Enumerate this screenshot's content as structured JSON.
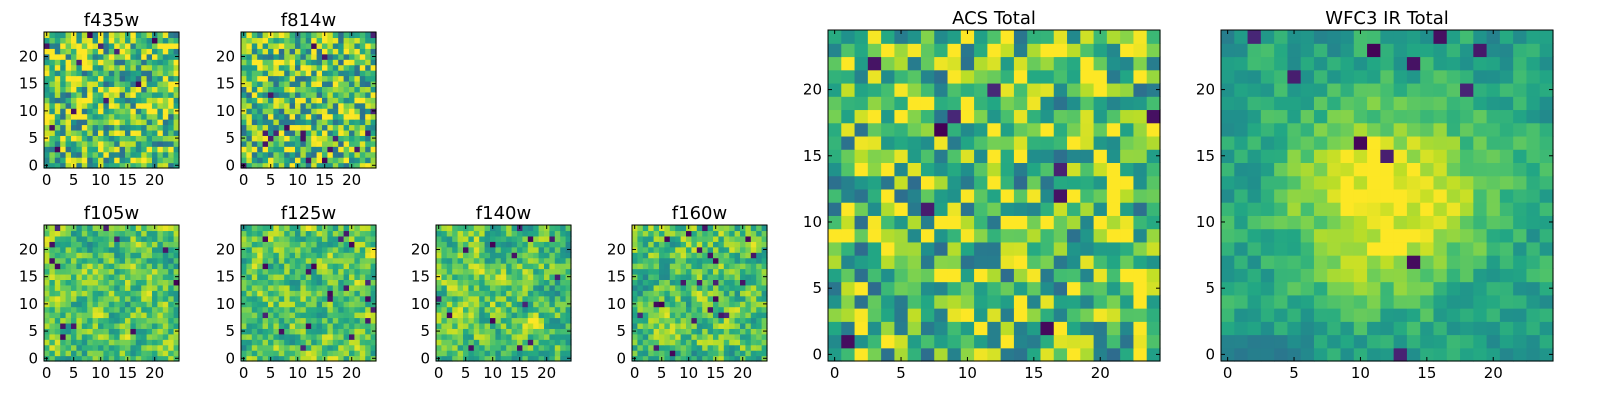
{
  "chart_data": [
    {
      "type": "heatmap",
      "title": "f435w",
      "grid_size": 25,
      "xticks": [
        "0",
        "5",
        "10",
        "15",
        "20"
      ],
      "yticks": [
        "0",
        "5",
        "10",
        "15",
        "20"
      ],
      "colormap": "viridis",
      "pattern": "noise",
      "seed": 11
    },
    {
      "type": "heatmap",
      "title": "f814w",
      "grid_size": 25,
      "xticks": [
        "0",
        "5",
        "10",
        "15",
        "20"
      ],
      "yticks": [
        "0",
        "5",
        "10",
        "15",
        "20"
      ],
      "colormap": "viridis",
      "pattern": "noise",
      "seed": 23
    },
    {
      "type": "heatmap",
      "title": "f105w",
      "grid_size": 25,
      "xticks": [
        "0",
        "5",
        "10",
        "15",
        "20"
      ],
      "yticks": [
        "0",
        "5",
        "10",
        "15",
        "20"
      ],
      "colormap": "viridis",
      "pattern": "smooth-noise",
      "seed": 37
    },
    {
      "type": "heatmap",
      "title": "f125w",
      "grid_size": 25,
      "xticks": [
        "0",
        "5",
        "10",
        "15",
        "20"
      ],
      "yticks": [
        "0",
        "5",
        "10",
        "15",
        "20"
      ],
      "colormap": "viridis",
      "pattern": "smooth-noise",
      "seed": 41
    },
    {
      "type": "heatmap",
      "title": "f140w",
      "grid_size": 25,
      "xticks": [
        "0",
        "5",
        "10",
        "15",
        "20"
      ],
      "yticks": [
        "0",
        "5",
        "10",
        "15",
        "20"
      ],
      "colormap": "viridis",
      "pattern": "smooth-noise",
      "seed": 53
    },
    {
      "type": "heatmap",
      "title": "f160w",
      "grid_size": 25,
      "xticks": [
        "0",
        "5",
        "10",
        "15",
        "20"
      ],
      "yticks": [
        "0",
        "5",
        "10",
        "15",
        "20"
      ],
      "colormap": "viridis",
      "pattern": "smooth-noise",
      "seed": 67
    },
    {
      "type": "heatmap",
      "title": "ACS Total",
      "grid_size": 25,
      "xticks": [
        "0",
        "5",
        "10",
        "15",
        "20"
      ],
      "yticks": [
        "0",
        "5",
        "10",
        "15",
        "20"
      ],
      "colormap": "viridis",
      "pattern": "noise",
      "seed": 79
    },
    {
      "type": "heatmap",
      "title": "WFC3 IR Total",
      "grid_size": 25,
      "xticks": [
        "0",
        "5",
        "10",
        "15",
        "20"
      ],
      "yticks": [
        "0",
        "5",
        "10",
        "15",
        "20"
      ],
      "colormap": "viridis",
      "pattern": "central-source",
      "seed": 97
    }
  ],
  "colors": {
    "viridis_low": "#440154",
    "viridis_mid": "#21908c",
    "viridis_high": "#fde725"
  }
}
